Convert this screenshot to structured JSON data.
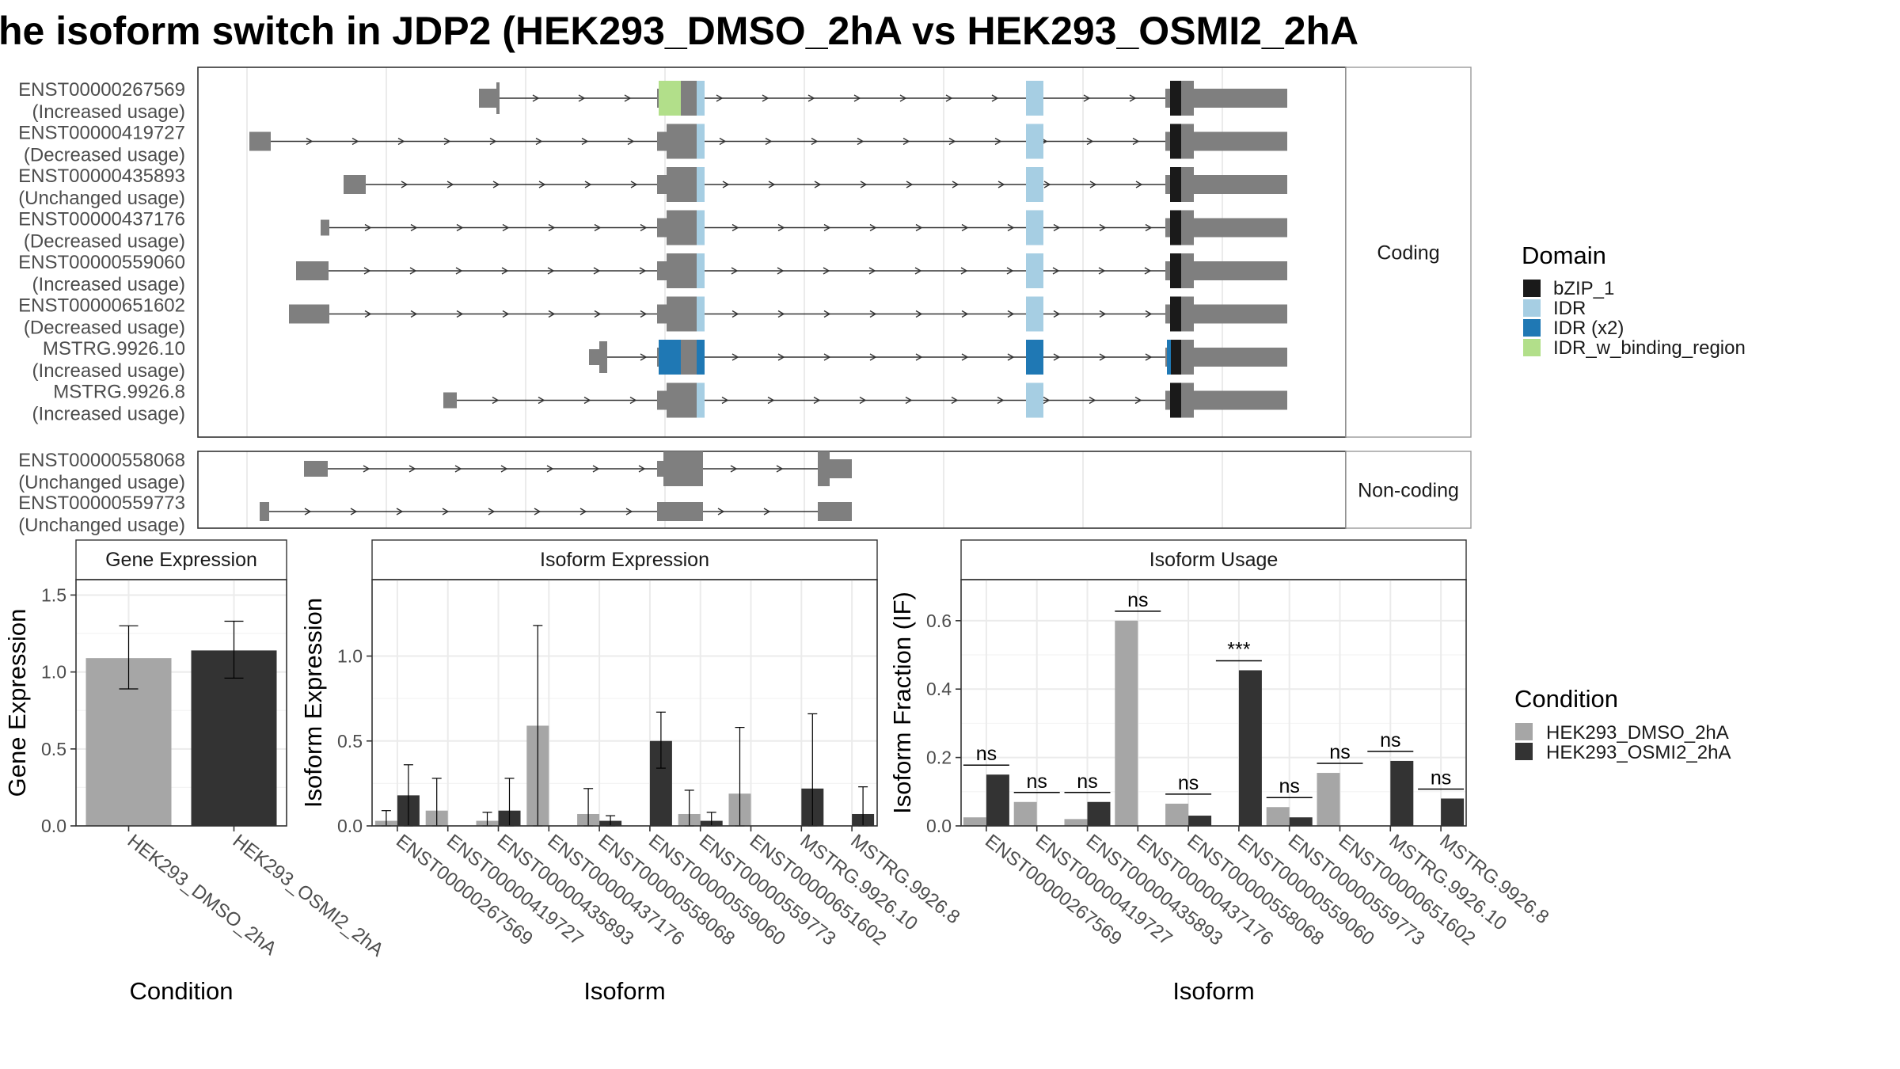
{
  "title": "he isoform switch in JDP2 (HEK293_DMSO_2hA vs HEK293_OSMI2_2hA",
  "structure": {
    "coding_label": "Coding",
    "noncoding_label": "Non-coding",
    "coding_transcripts": [
      {
        "id": "ENST00000267569",
        "usage": "(Increased usage)"
      },
      {
        "id": "ENST00000419727",
        "usage": "(Decreased usage)"
      },
      {
        "id": "ENST00000435893",
        "usage": "(Unchanged usage)"
      },
      {
        "id": "ENST00000437176",
        "usage": "(Decreased usage)"
      },
      {
        "id": "ENST00000559060",
        "usage": "(Increased usage)"
      },
      {
        "id": "ENST00000651602",
        "usage": "(Decreased usage)"
      },
      {
        "id": "MSTRG.9926.10",
        "usage": "(Increased usage)"
      },
      {
        "id": "MSTRG.9926.8",
        "usage": "(Increased usage)"
      }
    ],
    "noncoding_transcripts": [
      {
        "id": "ENST00000558068",
        "usage": "(Unchanged usage)"
      },
      {
        "id": "ENST00000559773",
        "usage": "(Unchanged usage)"
      }
    ]
  },
  "domain_legend": {
    "title": "Domain",
    "items": [
      {
        "label": "bZIP_1",
        "color": "#1a1a1a"
      },
      {
        "label": "IDR",
        "color": "#a6cee3"
      },
      {
        "label": "IDR (x2)",
        "color": "#1f78b4"
      },
      {
        "label": "IDR_w_binding_region",
        "color": "#b2df8a"
      }
    ]
  },
  "condition_legend": {
    "title": "Condition",
    "items": [
      {
        "label": "HEK293_DMSO_2hA",
        "color": "#a6a6a6"
      },
      {
        "label": "HEK293_OSMI2_2hA",
        "color": "#333333"
      }
    ]
  },
  "chart_data": [
    {
      "type": "bar",
      "title": "Gene Expression",
      "xlabel": "Condition",
      "ylabel": "Gene Expression",
      "ylim": [
        0,
        1.6
      ],
      "yticks": [
        "0.0",
        "0.5",
        "1.0",
        "1.5"
      ],
      "categories": [
        "HEK293_DMSO_2hA",
        "HEK293_OSMI2_2hA"
      ],
      "values": [
        1.09,
        1.14
      ],
      "err_low": [
        0.89,
        0.96
      ],
      "err_high": [
        1.3,
        1.33
      ]
    },
    {
      "type": "bar",
      "title": "Isoform Expression",
      "xlabel": "Isoform",
      "ylabel": "Isoform Expression",
      "ylim": [
        0,
        1.45
      ],
      "yticks": [
        "0.0",
        "0.5",
        "1.0"
      ],
      "categories": [
        "ENST00000267569",
        "ENST00000419727",
        "ENST00000435893",
        "ENST00000437176",
        "ENST00000558068",
        "ENST00000559060",
        "ENST00000559773",
        "ENST00000651602",
        "MSTRG.9926.10",
        "MSTRG.9926.8"
      ],
      "series": [
        {
          "name": "HEK293_DMSO_2hA",
          "values": [
            0.03,
            0.09,
            0.03,
            0.59,
            0.07,
            0.0,
            0.07,
            0.19,
            0.0,
            0.0
          ],
          "err_low": [
            0.0,
            0.0,
            0.0,
            0.0,
            0.0,
            0.0,
            0.0,
            0.0,
            0.0,
            0.0
          ],
          "err_high": [
            0.09,
            0.28,
            0.08,
            1.18,
            0.22,
            0.0,
            0.21,
            0.58,
            0.0,
            0.0
          ]
        },
        {
          "name": "HEK293_OSMI2_2hA",
          "values": [
            0.18,
            0.0,
            0.09,
            0.0,
            0.03,
            0.5,
            0.03,
            0.0,
            0.22,
            0.07
          ],
          "err_low": [
            0.0,
            0.0,
            0.0,
            0.0,
            0.0,
            0.34,
            0.0,
            0.0,
            0.0,
            0.0
          ],
          "err_high": [
            0.36,
            0.0,
            0.28,
            0.0,
            0.06,
            0.67,
            0.08,
            0.0,
            0.66,
            0.23
          ]
        }
      ]
    },
    {
      "type": "bar",
      "title": "Isoform Usage",
      "xlabel": "Isoform",
      "ylabel": "Isoform Fraction (IF)",
      "ylim": [
        0,
        0.72
      ],
      "yticks": [
        "0.0",
        "0.2",
        "0.4",
        "0.6"
      ],
      "categories": [
        "ENST00000267569",
        "ENST00000419727",
        "ENST00000435893",
        "ENST00000437176",
        "ENST00000558068",
        "ENST00000559060",
        "ENST00000559773",
        "ENST00000651602",
        "MSTRG.9926.10",
        "MSTRG.9926.8"
      ],
      "series": [
        {
          "name": "HEK293_DMSO_2hA",
          "values": [
            0.025,
            0.07,
            0.02,
            0.6,
            0.065,
            0.0,
            0.055,
            0.155,
            0.0,
            0.0
          ]
        },
        {
          "name": "HEK293_OSMI2_2hA",
          "values": [
            0.15,
            0.0,
            0.07,
            0.0,
            0.03,
            0.455,
            0.025,
            0.0,
            0.19,
            0.08
          ]
        }
      ],
      "significance": [
        "ns",
        "ns",
        "ns",
        "ns",
        "ns",
        "***",
        "ns",
        "ns",
        "ns",
        "ns"
      ]
    }
  ]
}
